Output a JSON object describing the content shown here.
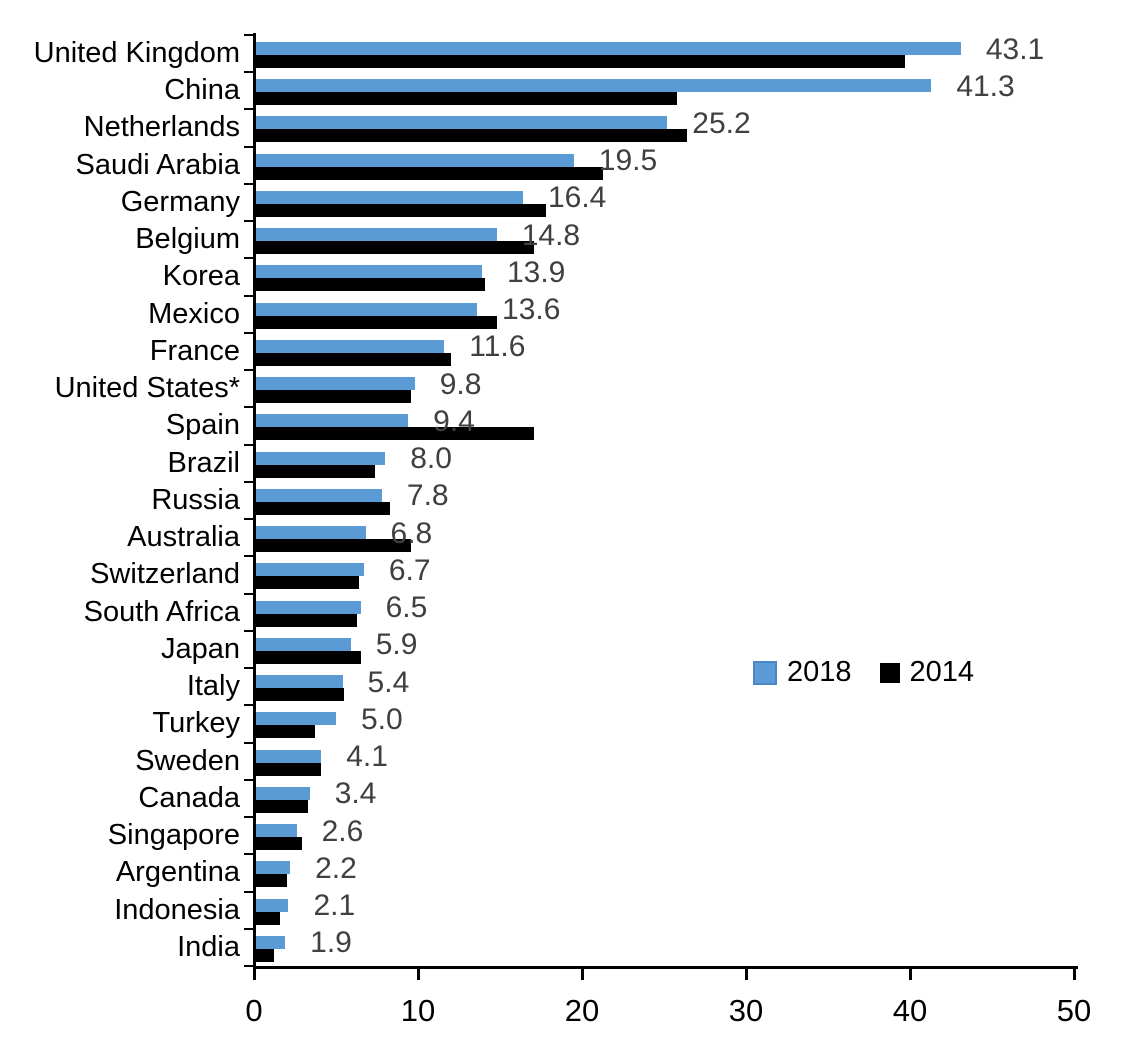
{
  "chart_data": {
    "type": "bar",
    "orientation": "horizontal",
    "title": "",
    "xlabel": "",
    "ylabel": "",
    "xlim": [
      0,
      50
    ],
    "x_ticks": [
      "0",
      "10",
      "20",
      "30",
      "40",
      "50"
    ],
    "grid": false,
    "legend_position": "middle-right",
    "categories": [
      "United Kingdom",
      "China",
      "Netherlands",
      "Saudi Arabia",
      "Germany",
      "Belgium",
      "Korea",
      "Mexico",
      "France",
      "United States*",
      "Spain",
      "Brazil",
      "Russia",
      "Australia",
      "Switzerland",
      "South Africa",
      "Japan",
      "Italy",
      "Turkey",
      "Sweden",
      "Canada",
      "Singapore",
      "Argentina",
      "Indonesia",
      "India"
    ],
    "series": [
      {
        "name": "2018",
        "color": "#5B9BD5",
        "values": [
          43.1,
          41.3,
          25.2,
          19.5,
          16.4,
          14.8,
          13.9,
          13.6,
          11.6,
          9.8,
          9.4,
          8.0,
          7.8,
          6.8,
          6.7,
          6.5,
          5.9,
          5.4,
          5.0,
          4.1,
          3.4,
          2.6,
          2.2,
          2.1,
          1.9
        ],
        "data_labels": [
          "43.1",
          "41.3",
          "25.2",
          "19.5",
          "16.4",
          "14.8",
          "13.9",
          "13.6",
          "11.6",
          "9.8",
          "9.4",
          "8.0",
          "7.8",
          "6.8",
          "6.7",
          "6.5",
          "5.9",
          "5.4",
          "5.0",
          "4.1",
          "3.4",
          "2.6",
          "2.2",
          "2.1",
          "1.9"
        ]
      },
      {
        "name": "2014",
        "color": "#000000",
        "values": [
          39.7,
          25.8,
          26.4,
          21.3,
          17.8,
          17.1,
          14.1,
          14.8,
          12.0,
          9.6,
          17.1,
          7.4,
          8.3,
          9.6,
          6.4,
          6.3,
          6.5,
          5.5,
          3.7,
          4.1,
          3.3,
          2.9,
          2.0,
          1.6,
          1.2
        ],
        "data_labels": []
      }
    ],
    "value_label_color": "#404040",
    "axis_color": "#000000"
  }
}
